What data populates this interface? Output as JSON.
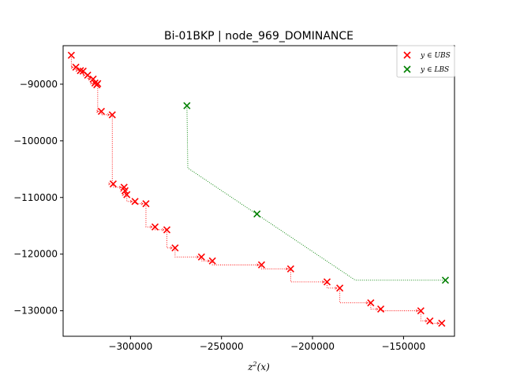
{
  "chart_data": {
    "type": "scatter",
    "title": "Bi-01BKP | node_969_DOMINANCE",
    "xlabel": "z²(x)",
    "ylabel": "",
    "xlim": [
      -337000,
      -122000
    ],
    "ylim": [
      -134500,
      -83200
    ],
    "xticks": [
      -300000,
      -250000,
      -200000,
      -150000
    ],
    "xtick_labels": [
      "−300000",
      "−250000",
      "−200000",
      "−150000"
    ],
    "yticks": [
      -90000,
      -100000,
      -110000,
      -120000,
      -130000
    ],
    "ytick_labels": [
      "−90000",
      "−100000",
      "−110000",
      "−120000",
      "−130000"
    ],
    "legend_position": "top-right",
    "series": [
      {
        "name": "y ∈ UBS",
        "marker": "x",
        "color": "#ff0000",
        "connector": "dotted-staircase",
        "points": [
          [
            -332500,
            -84900
          ],
          [
            -330000,
            -87000
          ],
          [
            -327500,
            -87600
          ],
          [
            -326000,
            -87700
          ],
          [
            -323500,
            -88400
          ],
          [
            -320500,
            -89100
          ],
          [
            -319500,
            -89800
          ],
          [
            -318500,
            -90100
          ],
          [
            -318000,
            -89900
          ],
          [
            -316000,
            -94800
          ],
          [
            -310000,
            -95400
          ],
          [
            -309500,
            -107600
          ],
          [
            -303500,
            -108200
          ],
          [
            -303000,
            -108800
          ],
          [
            -302000,
            -109500
          ],
          [
            -297500,
            -110700
          ],
          [
            -291500,
            -111100
          ],
          [
            -286500,
            -115200
          ],
          [
            -280000,
            -115700
          ],
          [
            -275500,
            -118900
          ],
          [
            -261000,
            -120500
          ],
          [
            -255000,
            -121200
          ],
          [
            -228000,
            -121900
          ],
          [
            -212000,
            -122600
          ],
          [
            -192000,
            -124900
          ],
          [
            -185000,
            -126000
          ],
          [
            -168000,
            -128600
          ],
          [
            -162500,
            -129700
          ],
          [
            -140500,
            -130000
          ],
          [
            -135500,
            -131800
          ],
          [
            -129000,
            -132200
          ]
        ]
      },
      {
        "name": "y ∈ LBS",
        "marker": "x",
        "color": "#008000",
        "connector": "dotted-line",
        "points": [
          [
            -269000,
            -93800
          ],
          [
            -230500,
            -112900
          ],
          [
            -127000,
            -124600
          ]
        ],
        "path": [
          [
            -269000,
            -93800
          ],
          [
            -268500,
            -104800
          ],
          [
            -176500,
            -124600
          ],
          [
            -127000,
            -124600
          ]
        ]
      }
    ]
  }
}
